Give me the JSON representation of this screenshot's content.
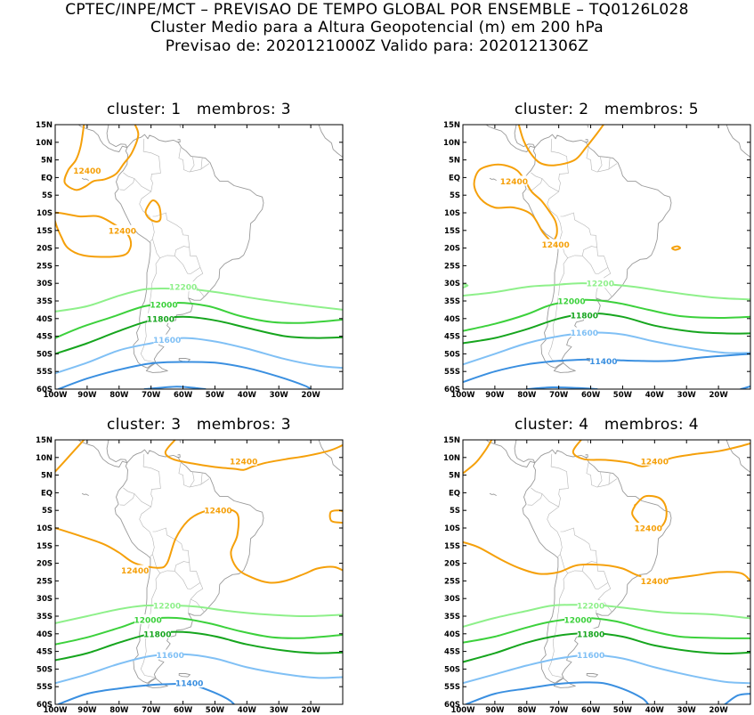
{
  "header": {
    "line1": "CPTEC/INPE/MCT – PREVISAO DE TEMPO GLOBAL POR ENSEMBLE – TQ0126L028",
    "line2": "Cluster Medio para a Altura Geopotencial (m) em 200 hPa",
    "line3": "Previsao de: 2020121000Z    Valido para: 2020121306Z"
  },
  "axes": {
    "lat_labels": [
      "15N",
      "10N",
      "5N",
      "EQ",
      "5S",
      "10S",
      "15S",
      "20S",
      "25S",
      "30S",
      "35S",
      "40S",
      "45S",
      "50S",
      "55S",
      "60S"
    ],
    "lon_labels": [
      "100W",
      "90W",
      "80W",
      "70W",
      "60W",
      "50W",
      "40W",
      "30W",
      "20W"
    ],
    "lat_range": [
      -60,
      15
    ],
    "lon_range": [
      -100,
      -10
    ]
  },
  "colors": {
    "c12400": "#f5a00a",
    "c12200": "#8ef08a",
    "c12000": "#3cd13c",
    "c11800": "#16a51e",
    "c11600": "#80c0f5",
    "c11400": "#3a8fe0"
  },
  "chart_data": [
    {
      "type": "contour",
      "title": "cluster: 1   membros: 3",
      "contour_labels": [
        {
          "value": "12400",
          "lon": -90,
          "lat": 2
        },
        {
          "value": "12400",
          "lon": -79,
          "lat": -15
        },
        {
          "value": "12200",
          "lon": -60,
          "lat": -31
        },
        {
          "value": "12000",
          "lon": -66,
          "lat": -36
        },
        {
          "value": "11800",
          "lon": -67,
          "lat": -40
        },
        {
          "value": "11600",
          "lon": -65,
          "lat": -46
        }
      ]
    },
    {
      "type": "contour",
      "title": "cluster: 2   membros: 5",
      "contour_labels": [
        {
          "value": "12400",
          "lon": -84,
          "lat": -1
        },
        {
          "value": "12400",
          "lon": -71,
          "lat": -19
        },
        {
          "value": "12200",
          "lon": -57,
          "lat": -30
        },
        {
          "value": "12000",
          "lon": -66,
          "lat": -35
        },
        {
          "value": "11800",
          "lon": -62,
          "lat": -39
        },
        {
          "value": "11600",
          "lon": -62,
          "lat": -44
        },
        {
          "value": "11400",
          "lon": -56,
          "lat": -52
        }
      ]
    },
    {
      "type": "contour",
      "title": "cluster: 3   membros: 3",
      "contour_labels": [
        {
          "value": "12400",
          "lon": -41,
          "lat": 9
        },
        {
          "value": "12400",
          "lon": -49,
          "lat": -5
        },
        {
          "value": "12400",
          "lon": -75,
          "lat": -22
        },
        {
          "value": "12200",
          "lon": -65,
          "lat": -32
        },
        {
          "value": "12000",
          "lon": -71,
          "lat": -36
        },
        {
          "value": "11800",
          "lon": -68,
          "lat": -40
        },
        {
          "value": "11600",
          "lon": -64,
          "lat": -46
        },
        {
          "value": "11400",
          "lon": -58,
          "lat": -54
        }
      ]
    },
    {
      "type": "contour",
      "title": "cluster: 4   membros: 4",
      "contour_labels": [
        {
          "value": "12400",
          "lon": -40,
          "lat": 9
        },
        {
          "value": "12400",
          "lon": -42,
          "lat": -10
        },
        {
          "value": "12400",
          "lon": -40,
          "lat": -25
        },
        {
          "value": "12200",
          "lon": -60,
          "lat": -32
        },
        {
          "value": "12000",
          "lon": -64,
          "lat": -36
        },
        {
          "value": "11800",
          "lon": -60,
          "lat": -40
        },
        {
          "value": "11600",
          "lon": -60,
          "lat": -46
        }
      ]
    }
  ]
}
